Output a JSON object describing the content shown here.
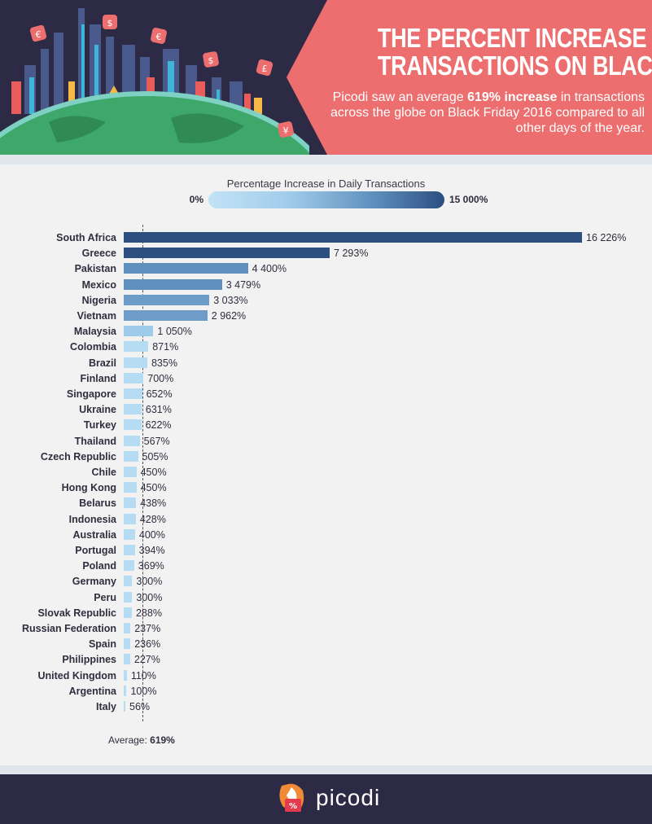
{
  "header": {
    "title_line1": "THE PERCENT INCREASE IN DAILY",
    "title_line2": "TRANSACTIONS ON BLACK FRIDAY",
    "subtitle_pre": "Picodi saw an average ",
    "subtitle_bold": "619% increase",
    "subtitle_post": " in transactions across the globe on Black Friday 2016 compared to all other days of the year."
  },
  "legend": {
    "title": "Percentage Increase in Daily Transactions",
    "min_label": "0%",
    "max_label": "15 000%"
  },
  "average": {
    "label": "Average: ",
    "value_label": "619%",
    "value": 619
  },
  "footer": {
    "brand": "picodi"
  },
  "colors": {
    "header_bg": "#2d2a46",
    "banner": "#ec6e6e",
    "scale": [
      "#c3e3f6",
      "#9fcbea",
      "#5e8fbd",
      "#2c4f80"
    ]
  },
  "chart_data": {
    "type": "bar",
    "orientation": "horizontal",
    "title": "",
    "xlabel": "",
    "ylabel": "",
    "categories": [
      "South Africa",
      "Greece",
      "Pakistan",
      "Mexico",
      "Nigeria",
      "Vietnam",
      "Malaysia",
      "Colombia",
      "Brazil",
      "Finland",
      "Singapore",
      "Ukraine",
      "Turkey",
      "Thailand",
      "Czech Republic",
      "Chile",
      "Hong Kong",
      "Belarus",
      "Indonesia",
      "Australia",
      "Portugal",
      "Poland",
      "Germany",
      "Peru",
      "Slovak Republic",
      "Russian Federation",
      "Spain",
      "Philippines",
      "United Kingdom",
      "Argentina",
      "Italy"
    ],
    "values": [
      16226,
      7293,
      4400,
      3479,
      3033,
      2962,
      1050,
      871,
      835,
      700,
      652,
      631,
      622,
      567,
      505,
      450,
      450,
      438,
      428,
      400,
      394,
      369,
      300,
      300,
      288,
      237,
      236,
      227,
      110,
      100,
      56
    ],
    "value_labels": [
      "16 226%",
      "7 293%",
      "4 400%",
      "3 479%",
      "3 033%",
      "2 962%",
      "1 050%",
      "871%",
      "835%",
      "700%",
      "652%",
      "631%",
      "622%",
      "567%",
      "505%",
      "450%",
      "450%",
      "438%",
      "428%",
      "400%",
      "394%",
      "369%",
      "300%",
      "300%",
      "288%",
      "237%",
      "236%",
      "227%",
      "110%",
      "100%",
      "56%"
    ],
    "xlim": [
      0,
      16226
    ],
    "grid": false,
    "reference_line": 619
  }
}
